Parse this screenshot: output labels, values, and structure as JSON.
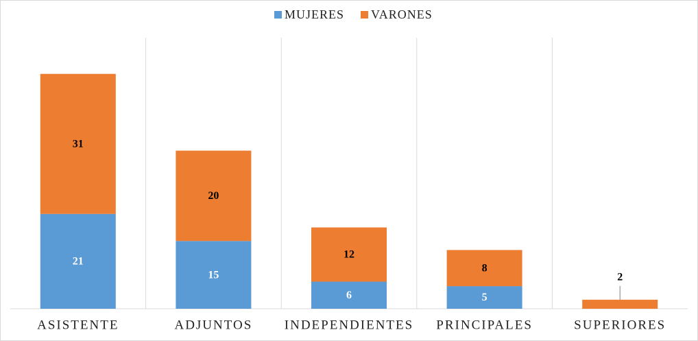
{
  "chart_data": {
    "type": "stacked_bar",
    "categories": [
      "ASISTENTE",
      "ADJUNTOS",
      "INDEPENDIENTES",
      "PRINCIPALES",
      "SUPERIORES"
    ],
    "series": [
      {
        "name": "MUJERES",
        "color": "#5b9bd5",
        "label_color": "#ffffff",
        "values": [
          21,
          15,
          6,
          5,
          null
        ]
      },
      {
        "name": "VARONES",
        "color": "#ed7d31",
        "label_color": "#000000",
        "values": [
          31,
          20,
          12,
          8,
          2
        ]
      }
    ],
    "ylim": [
      0,
      60
    ],
    "grid": true,
    "legend": "top"
  }
}
